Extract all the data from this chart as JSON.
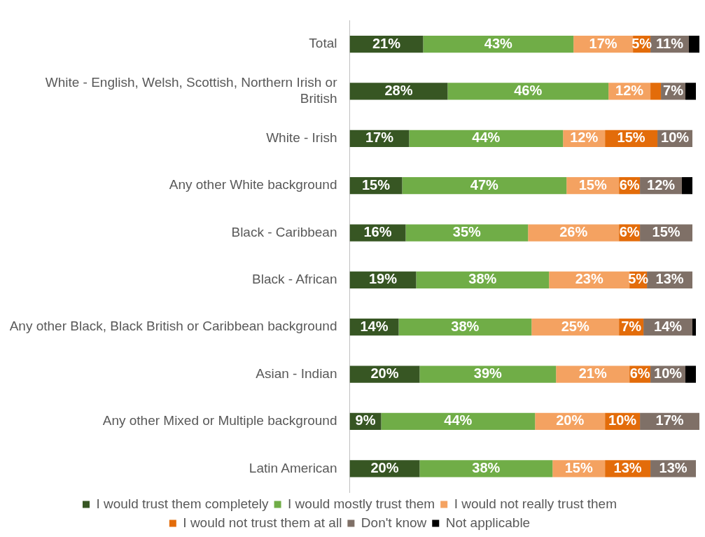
{
  "chart_data": {
    "type": "bar",
    "orientation": "horizontal",
    "stacked": true,
    "legend": "bottom",
    "grid": false,
    "tick_labels": "y",
    "xlim": [
      0,
      100
    ],
    "categories": [
      "Total",
      "White - English, Welsh, Scottish, Northern Irish or British",
      "White - Irish",
      "Any other White background",
      "Black - Caribbean",
      "Black - African",
      "Any other Black, Black British or Caribbean background",
      "Asian - Indian",
      "Any other Mixed or Multiple background",
      "Latin American"
    ],
    "series": [
      {
        "name": "I would trust them completely",
        "color": "#375623",
        "values": [
          21,
          28,
          17,
          15,
          16,
          19,
          14,
          20,
          9,
          20
        ],
        "value_labels": [
          "21%",
          "28%",
          "17%",
          "15%",
          "16%",
          "19%",
          "14%",
          "20%",
          "9%",
          "20%"
        ]
      },
      {
        "name": "I would mostly trust them",
        "color": "#70ad47",
        "values": [
          43,
          46,
          44,
          47,
          35,
          38,
          38,
          39,
          44,
          38
        ],
        "value_labels": [
          "43%",
          "46%",
          "44%",
          "47%",
          "35%",
          "38%",
          "38%",
          "39%",
          "44%",
          "38%"
        ]
      },
      {
        "name": "I would not really trust them",
        "color": "#f4a261",
        "values": [
          17,
          12,
          12,
          15,
          26,
          23,
          25,
          21,
          20,
          15
        ],
        "value_labels": [
          "17%",
          "12%",
          "12%",
          "15%",
          "26%",
          "23%",
          "25%",
          "21%",
          "20%",
          "15%"
        ]
      },
      {
        "name": "I would not trust them at all",
        "color": "#e36c0a",
        "values": [
          5,
          3,
          15,
          6,
          6,
          5,
          7,
          6,
          10,
          13
        ],
        "value_labels": [
          "5%",
          null,
          "15%",
          "6%",
          "6%",
          "5%",
          "7%",
          "6%",
          "10%",
          "13%"
        ]
      },
      {
        "name": "Don't know",
        "color": "#7f7067",
        "values": [
          11,
          7,
          10,
          12,
          15,
          13,
          14,
          10,
          17,
          13
        ],
        "value_labels": [
          "11%",
          "7%",
          "10%",
          "12%",
          "15%",
          "13%",
          "14%",
          "10%",
          "17%",
          "13%"
        ]
      },
      {
        "name": "Not applicable",
        "color": "#000000",
        "values": [
          3,
          3,
          null,
          3,
          null,
          null,
          1,
          3,
          null,
          null
        ],
        "value_labels": [
          null,
          null,
          null,
          null,
          null,
          null,
          null,
          null,
          null,
          null
        ]
      }
    ]
  }
}
